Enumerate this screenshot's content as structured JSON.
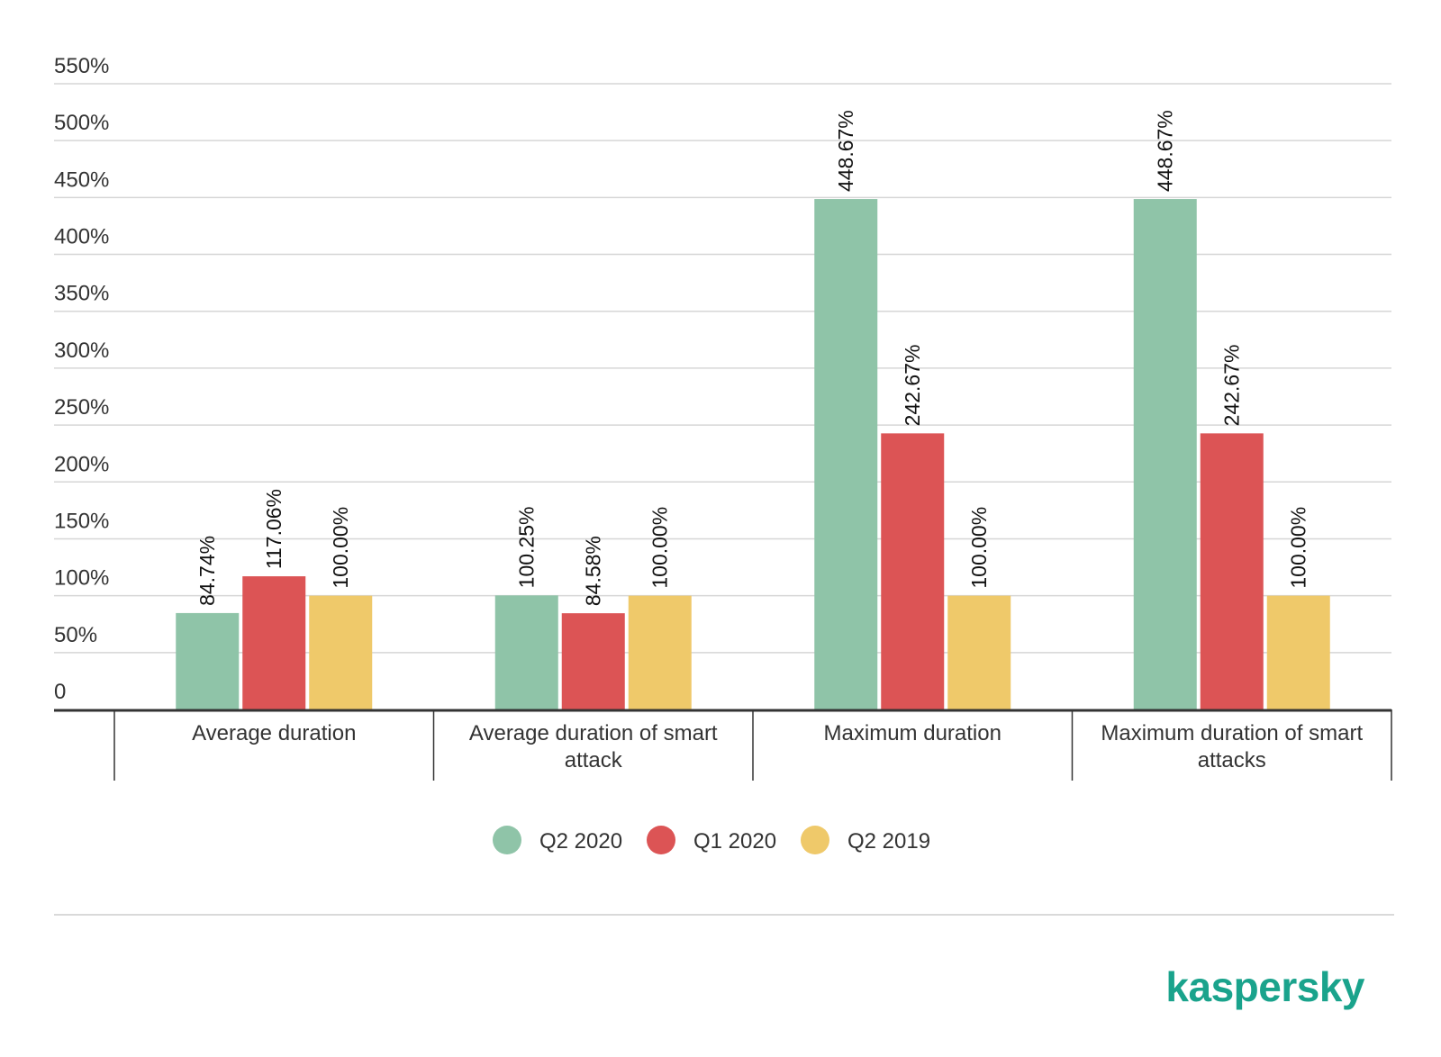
{
  "chart_data": {
    "type": "bar",
    "categories": [
      [
        "Average duration"
      ],
      [
        "Average duration of smart",
        "attack"
      ],
      [
        "Maximum duration"
      ],
      [
        "Maximum duration of smart",
        "attacks"
      ]
    ],
    "series": [
      {
        "name": "Q2 2020",
        "color": "#8fc4a8",
        "values": [
          84.74,
          100.25,
          448.67,
          448.67
        ],
        "labels": [
          "84.74%",
          "100.25%",
          "448.67%",
          "448.67%"
        ]
      },
      {
        "name": "Q1 2020",
        "color": "#dc5455",
        "values": [
          117.06,
          84.58,
          242.67,
          242.67
        ],
        "labels": [
          "117.06%",
          "84.58%",
          "242.67%",
          "242.67%"
        ]
      },
      {
        "name": "Q2 2019",
        "color": "#efc96a",
        "values": [
          100.0,
          100.0,
          100.0,
          100.0
        ],
        "labels": [
          "100.00%",
          "100.00%",
          "100.00%",
          "100.00%"
        ]
      }
    ],
    "y_ticks": [
      "0",
      "50%",
      "100%",
      "150%",
      "200%",
      "250%",
      "300%",
      "350%",
      "400%",
      "450%",
      "500%",
      "550%"
    ],
    "ylim": [
      0,
      550
    ],
    "grid": true,
    "legend_position": "bottom-center"
  },
  "brand": {
    "logo_text": "kaspersky",
    "color": "#1aa38c"
  }
}
